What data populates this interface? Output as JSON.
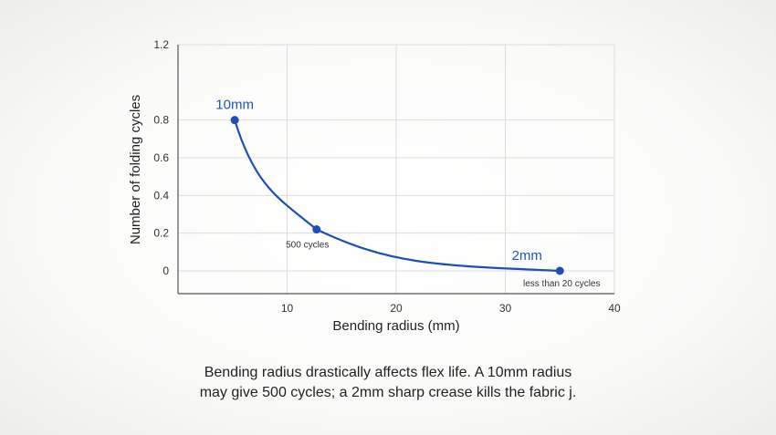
{
  "chart_data": {
    "type": "line",
    "xlabel": "Bending radius (mm)",
    "ylabel": "Number of folding cycles",
    "xlim": [
      0,
      40
    ],
    "ylim": [
      -0.1,
      1.2
    ],
    "x_ticks": [
      10,
      20,
      30,
      40
    ],
    "y_ticks": [
      0,
      0.2,
      0.4,
      0.6,
      0.8,
      1.2
    ],
    "grid": true,
    "series": [
      {
        "color": "#1f4fb5",
        "points": [
          {
            "x": 5.2,
            "y": 0.8,
            "label": "10mm",
            "note": ""
          },
          {
            "x": 12.7,
            "y": 0.22,
            "label": "",
            "note": "500 cycles"
          },
          {
            "x": 35,
            "y": 0,
            "label": "2mm",
            "note": "less than 20 cycles"
          }
        ]
      }
    ]
  },
  "caption": {
    "line1": "Bending radius drastically affects flex life. A 10mm radius",
    "line2": "may give 500 cycles; a 2mm sharp crease kills the fabric j."
  }
}
